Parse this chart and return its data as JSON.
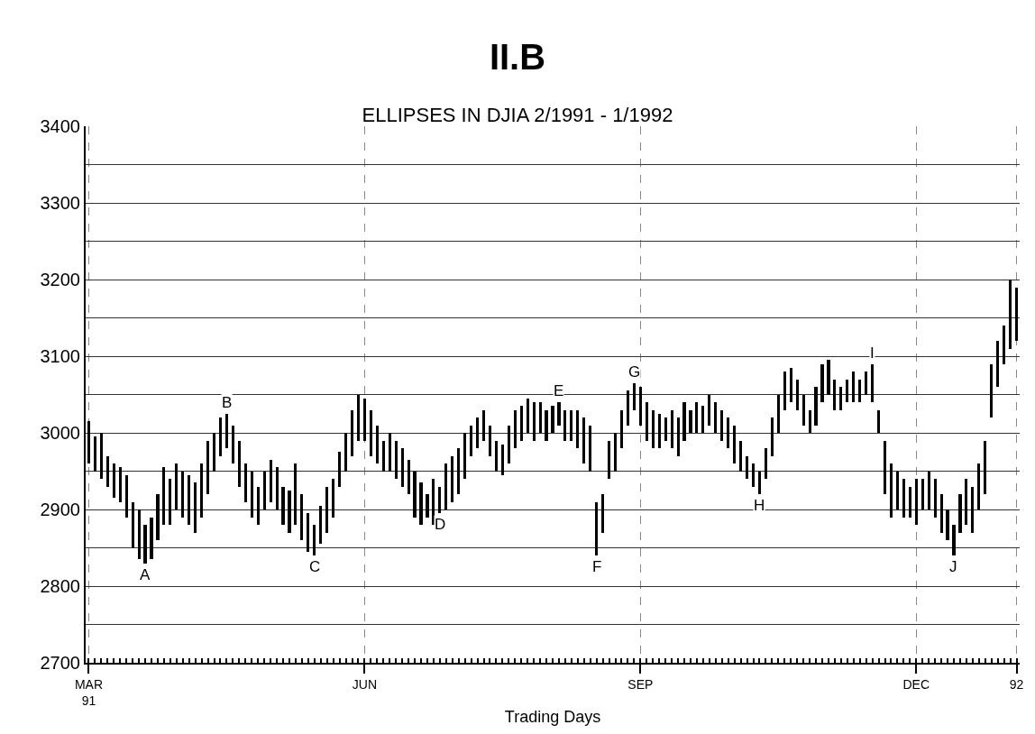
{
  "chart_data": {
    "type": "bar",
    "title": "II.B",
    "subtitle": "ELLIPSES IN DJIA 2/1991 - 1/1992",
    "xlabel": "Trading Days",
    "categories": [
      "MAR\n91",
      null,
      null,
      null,
      null,
      null,
      null,
      null,
      null,
      null,
      null,
      null,
      null,
      null,
      null,
      null,
      null,
      null,
      null,
      null,
      null,
      null,
      null,
      null,
      null,
      null,
      null,
      null,
      null,
      null,
      null,
      null,
      null,
      null,
      null,
      null,
      null,
      null,
      null,
      null,
      null,
      null,
      null,
      null,
      "JUN",
      null,
      null,
      null,
      null,
      null,
      null,
      null,
      null,
      null,
      null,
      null,
      null,
      null,
      null,
      null,
      null,
      null,
      null,
      null,
      null,
      null,
      null,
      null,
      null,
      null,
      null,
      null,
      null,
      null,
      null,
      null,
      null,
      null,
      null,
      null,
      null,
      null,
      null,
      null,
      null,
      null,
      null,
      null,
      "SEP",
      null,
      null,
      null,
      null,
      null,
      null,
      null,
      null,
      null,
      null,
      null,
      null,
      null,
      null,
      null,
      null,
      null,
      null,
      null,
      null,
      null,
      null,
      null,
      null,
      null,
      null,
      null,
      null,
      null,
      null,
      null,
      null,
      null,
      null,
      null,
      null,
      null,
      null,
      null,
      null,
      null,
      null,
      null,
      "DEC",
      null,
      null,
      null,
      null,
      null,
      null,
      null,
      null,
      null,
      null,
      null,
      null,
      null,
      null,
      null,
      "92"
    ],
    "series": [
      {
        "color": "#000000",
        "base": [
          2960,
          2950,
          2940,
          2930,
          2915,
          2910,
          2890,
          2850,
          2835,
          2830,
          2835,
          2860,
          2880,
          2880,
          2900,
          2890,
          2880,
          2870,
          2890,
          2920,
          2950,
          2970,
          2980,
          2960,
          2930,
          2910,
          2890,
          2880,
          2900,
          2910,
          2900,
          2880,
          2870,
          2880,
          2860,
          2845,
          2840,
          2855,
          2870,
          2890,
          2930,
          2950,
          2970,
          2990,
          2990,
          2970,
          2960,
          2950,
          2950,
          2940,
          2930,
          2920,
          2890,
          2880,
          2890,
          2880,
          2895,
          2900,
          2910,
          2920,
          2940,
          2970,
          2980,
          2990,
          2970,
          2950,
          2945,
          2960,
          2980,
          2990,
          3000,
          2990,
          3000,
          2990,
          3000,
          3010,
          2990,
          2990,
          2980,
          2960,
          2950,
          2840,
          2870,
          2940,
          2950,
          2980,
          3010,
          3030,
          3010,
          2990,
          2980,
          2980,
          2990,
          2980,
          2970,
          2990,
          3000,
          3000,
          3000,
          3010,
          3000,
          2990,
          2980,
          2960,
          2950,
          2940,
          2930,
          2920,
          2940,
          2970,
          3000,
          3030,
          3040,
          3030,
          3010,
          3000,
          3010,
          3040,
          3050,
          3030,
          3030,
          3040,
          3040,
          3040,
          3050,
          3040,
          3000,
          2920,
          2890,
          2900,
          2890,
          2890,
          2880,
          2900,
          2900,
          2890,
          2870,
          2860,
          2840,
          2870,
          2880,
          2870,
          2900,
          2920,
          3020,
          3060,
          3090,
          3110,
          3120
        ],
        "values": [
          55,
          45,
          60,
          40,
          45,
          45,
          55,
          60,
          65,
          50,
          55,
          60,
          75,
          60,
          60,
          60,
          65,
          65,
          70,
          70,
          50,
          50,
          45,
          50,
          60,
          50,
          60,
          50,
          50,
          55,
          55,
          50,
          55,
          80,
          60,
          50,
          40,
          50,
          60,
          50,
          45,
          50,
          60,
          60,
          55,
          60,
          50,
          40,
          50,
          50,
          50,
          45,
          60,
          55,
          30,
          60,
          35,
          60,
          60,
          60,
          60,
          40,
          40,
          40,
          40,
          40,
          40,
          50,
          50,
          45,
          45,
          50,
          40,
          40,
          35,
          30,
          40,
          40,
          50,
          60,
          60,
          70,
          50,
          50,
          50,
          50,
          45,
          35,
          50,
          50,
          50,
          45,
          30,
          50,
          50,
          50,
          30,
          40,
          35,
          40,
          40,
          40,
          40,
          50,
          40,
          30,
          30,
          30,
          40,
          50,
          50,
          50,
          45,
          40,
          40,
          30,
          50,
          50,
          45,
          40,
          30,
          30,
          40,
          30,
          30,
          50,
          30,
          70,
          70,
          50,
          50,
          40,
          60,
          40,
          50,
          50,
          50,
          40,
          40,
          50,
          60,
          60,
          60,
          70,
          70,
          60,
          50,
          90,
          70
        ],
        "value_labels": [
          null,
          null,
          null,
          null,
          null,
          null,
          null,
          null,
          null,
          "A",
          null,
          null,
          null,
          null,
          null,
          null,
          null,
          null,
          null,
          null,
          null,
          null,
          "B",
          null,
          null,
          null,
          null,
          null,
          null,
          null,
          null,
          null,
          null,
          null,
          null,
          null,
          "C",
          null,
          null,
          null,
          null,
          null,
          null,
          null,
          null,
          null,
          null,
          null,
          null,
          null,
          null,
          null,
          null,
          null,
          null,
          null,
          "D",
          null,
          null,
          null,
          null,
          null,
          null,
          null,
          null,
          null,
          null,
          null,
          null,
          null,
          null,
          null,
          null,
          null,
          null,
          "E",
          null,
          null,
          null,
          null,
          null,
          "F",
          null,
          null,
          null,
          null,
          null,
          "G",
          null,
          null,
          null,
          null,
          null,
          null,
          null,
          null,
          null,
          null,
          null,
          null,
          null,
          null,
          null,
          null,
          null,
          null,
          null,
          "H",
          null,
          null,
          null,
          null,
          null,
          null,
          null,
          null,
          null,
          null,
          null,
          null,
          null,
          null,
          null,
          null,
          null,
          "I",
          null,
          null,
          null,
          null,
          null,
          null,
          null,
          null,
          null,
          null,
          null,
          null,
          "J",
          null,
          null,
          null,
          null,
          null,
          null,
          null,
          null,
          null,
          null
        ]
      }
    ],
    "ylim": [
      2700,
      3400
    ],
    "yticks": [
      2700,
      {
        "value": 2750,
        "label": null
      },
      2800,
      {
        "value": 2850,
        "label": null
      },
      2900,
      {
        "value": 2950,
        "label": null
      },
      3000,
      {
        "value": 3050,
        "label": null
      },
      3100,
      {
        "value": 3150,
        "label": null
      },
      3200,
      {
        "value": 3250,
        "label": null
      },
      3300,
      {
        "value": 3350,
        "label": null
      },
      3400
    ],
    "grid": true
  }
}
